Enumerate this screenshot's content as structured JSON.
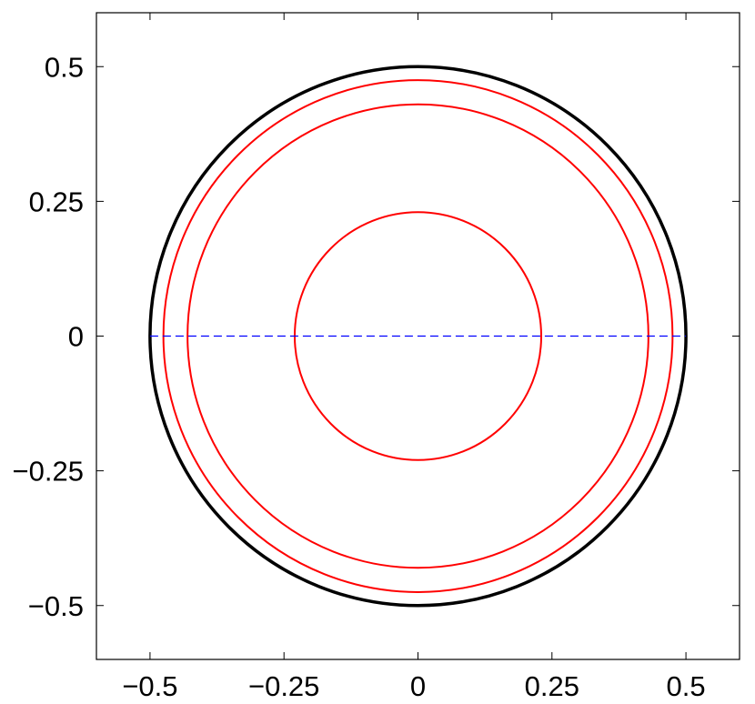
{
  "chart_data": {
    "type": "circles",
    "circles": [
      {
        "radius": 0.5,
        "color": "#000000",
        "width": 3.5
      },
      {
        "radius": 0.475,
        "color": "#ff0000",
        "width": 2
      },
      {
        "radius": 0.43,
        "color": "#ff0000",
        "width": 2
      },
      {
        "radius": 0.23,
        "color": "#ff0000",
        "width": 2
      }
    ],
    "lines": [
      {
        "x": [
          -0.5,
          0.5
        ],
        "y": [
          0,
          0
        ],
        "color": "#0000ff",
        "dashed": true
      }
    ],
    "xlim": [
      -0.6,
      0.6
    ],
    "ylim": [
      -0.6,
      0.6
    ],
    "xticks": [
      {
        "value": -0.5,
        "label": "−0.5"
      },
      {
        "value": -0.25,
        "label": "−0.25"
      },
      0,
      0.25,
      0.5
    ],
    "yticks": [
      {
        "value": -0.5,
        "label": "−0.5"
      },
      {
        "value": -0.25,
        "label": "−0.25"
      },
      0,
      0.25,
      0.5
    ],
    "grid": false
  }
}
